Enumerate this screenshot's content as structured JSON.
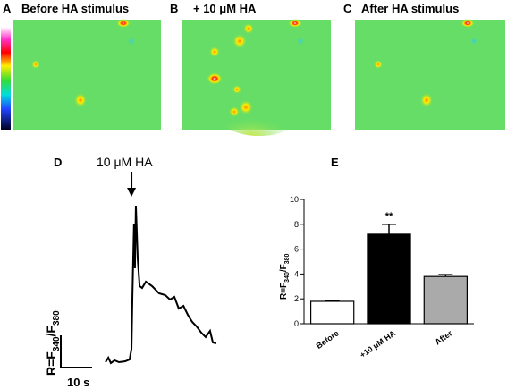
{
  "image_panels": [
    {
      "letter": "A",
      "title": "Before HA stimulus"
    },
    {
      "letter": "B",
      "title": "+ 10 μM HA"
    },
    {
      "letter": "C",
      "title": "After HA stimulus"
    }
  ],
  "chart_data": [
    {
      "type": "line",
      "panel": "D",
      "annotation": "10 μM HA",
      "annotation_x": 8.3,
      "ylabel": [
        "R=F",
        "340",
        "/F",
        "380"
      ],
      "scalebar_label": "10 s",
      "scalebar_x": 10,
      "xlim": [
        0,
        36
      ],
      "ylim": [
        0,
        18
      ],
      "color": "#000000",
      "x": [
        0,
        0.9,
        1.7,
        2.9,
        4.3,
        6.3,
        7.7,
        8.3,
        8.6,
        9.1,
        9.4,
        9.7,
        10.3,
        10.9,
        11.7,
        12.9,
        14.9,
        17.1,
        19.1,
        20.6,
        22.0,
        23.4,
        24.9,
        26.3,
        27.7,
        29.1,
        30.6,
        32.0,
        33.4,
        34.3,
        35.4
      ],
      "values": [
        0.5,
        1.0,
        0.4,
        0.7,
        0.5,
        0.6,
        0.8,
        2.0,
        8.0,
        16.0,
        11.0,
        18.0,
        12.0,
        9.0,
        8.8,
        9.5,
        9.0,
        8.2,
        8.0,
        7.5,
        7.8,
        6.5,
        6.8,
        5.8,
        5.0,
        4.5,
        3.8,
        3.3,
        4.0,
        2.7,
        2.6
      ]
    },
    {
      "type": "bar",
      "panel": "E",
      "ylabel": [
        "R=F",
        "340",
        "/F",
        "380"
      ],
      "categories": [
        "Before",
        "+10 μM HA",
        "After"
      ],
      "values": [
        1.8,
        7.2,
        3.8
      ],
      "errors": [
        0.05,
        0.8,
        0.15
      ],
      "colors": [
        "#ffffff",
        "#000000",
        "#aaaaaa"
      ],
      "annotation": "**",
      "annotation_index": 1,
      "ylim": [
        0,
        10
      ],
      "yticks": [
        0,
        2,
        4,
        6,
        8,
        10
      ]
    }
  ]
}
